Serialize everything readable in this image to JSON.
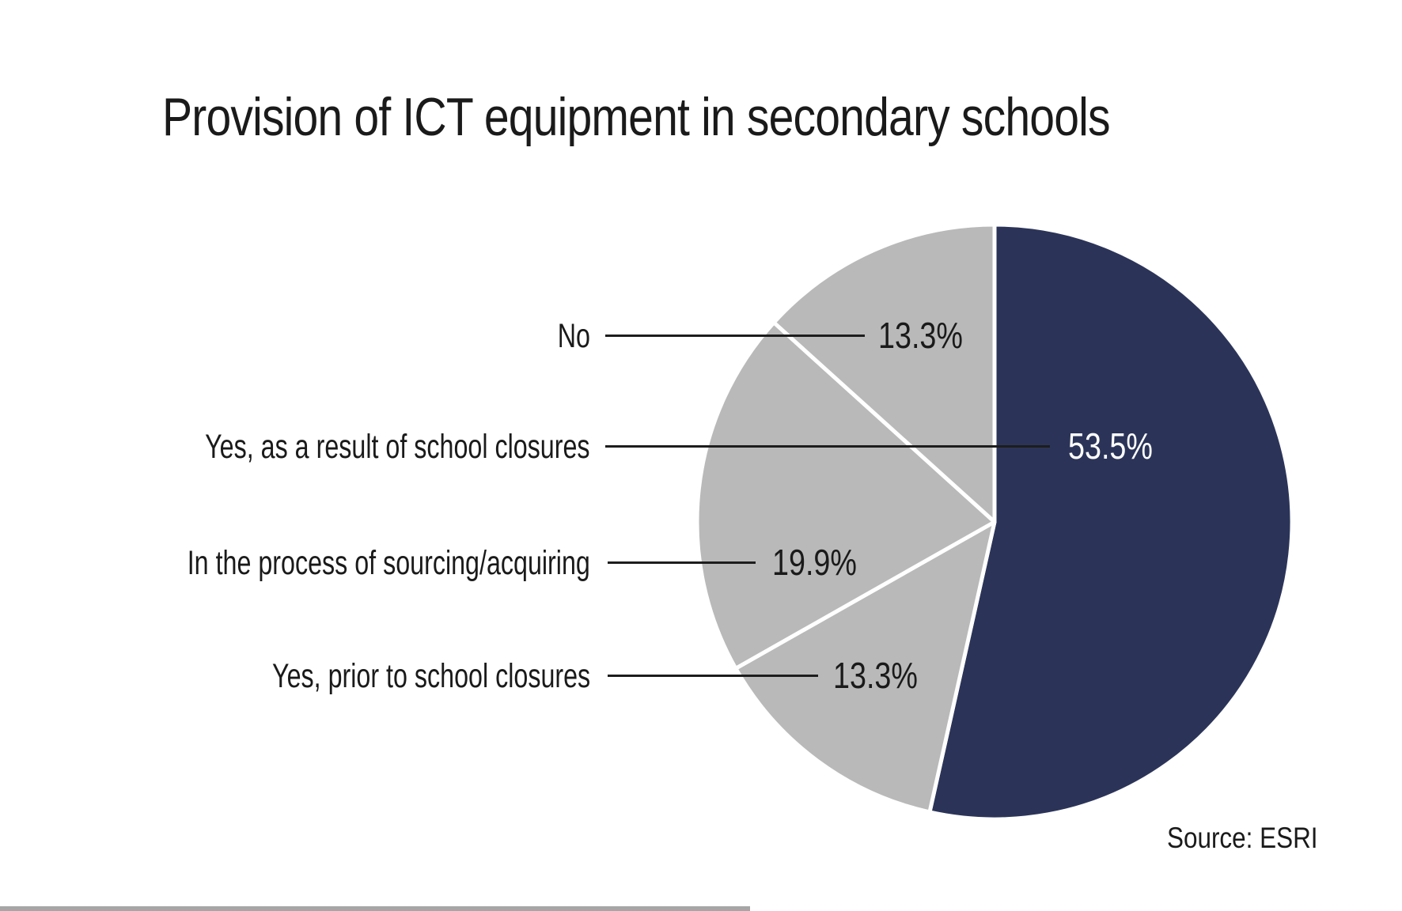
{
  "title": "Provision of ICT equipment in secondary schools",
  "source_note": "Source: ESRI",
  "colors": {
    "text": "#1a1a1a",
    "leader": "#1d1d1d",
    "divider": "#ffffff",
    "navy": "#2b3458",
    "gray": "#b9b9b9",
    "value-on-navy": "#ffffff",
    "bottom-bar": "#a6a6a6",
    "background": "#ffffff"
  },
  "chart_data": {
    "type": "pie",
    "title": "Provision of ICT equipment in secondary schools",
    "unit": "%",
    "start_angle_deg": 0,
    "direction": "clockwise",
    "legend_position": "left-callout-labels",
    "slices": [
      {
        "label": "Yes, as a result of school closures",
        "value": 53.5,
        "value_label": "53.5%",
        "color": "#2b3458"
      },
      {
        "label": "Yes, prior to school closures",
        "value": 13.3,
        "value_label": "13.3%",
        "color": "#b9b9b9"
      },
      {
        "label": "In the process of sourcing/acquiring",
        "value": 19.9,
        "value_label": "19.9%",
        "color": "#b9b9b9"
      },
      {
        "label": "No",
        "value": 13.3,
        "value_label": "13.3%",
        "color": "#b9b9b9"
      }
    ],
    "source": "Source: ESRI"
  }
}
